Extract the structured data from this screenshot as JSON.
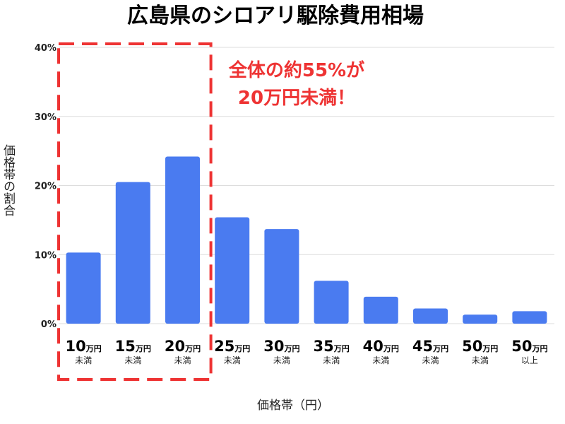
{
  "chart_data": {
    "type": "bar",
    "title": "広島県のシロアリ駆除費用相場",
    "xlabel": "価格帯（円）",
    "ylabel": "価格帯の割合",
    "ylim": [
      0,
      40
    ],
    "yticks": [
      "0%",
      "10%",
      "20%",
      "30%",
      "40%"
    ],
    "grid": true,
    "categories": [
      {
        "amount": "10",
        "unit": "万円",
        "suffix": "未満"
      },
      {
        "amount": "15",
        "unit": "万円",
        "suffix": "未満"
      },
      {
        "amount": "20",
        "unit": "万円",
        "suffix": "未満"
      },
      {
        "amount": "25",
        "unit": "万円",
        "suffix": "未満"
      },
      {
        "amount": "30",
        "unit": "万円",
        "suffix": "未満"
      },
      {
        "amount": "35",
        "unit": "万円",
        "suffix": "未満"
      },
      {
        "amount": "40",
        "unit": "万円",
        "suffix": "未満"
      },
      {
        "amount": "45",
        "unit": "万円",
        "suffix": "未満"
      },
      {
        "amount": "50",
        "unit": "万円",
        "suffix": "未満"
      },
      {
        "amount": "50",
        "unit": "万円",
        "suffix": "以上"
      }
    ],
    "values": [
      10.3,
      20.5,
      24.2,
      15.4,
      13.7,
      6.2,
      3.9,
      2.2,
      1.3,
      1.8
    ],
    "highlight": {
      "category_range": [
        0,
        2
      ],
      "style": "dashed-box",
      "color": "#ee3333",
      "annotation": [
        "全体の約55%が",
        "20万円未満！"
      ]
    },
    "bar_color": "#4a7bf0"
  }
}
